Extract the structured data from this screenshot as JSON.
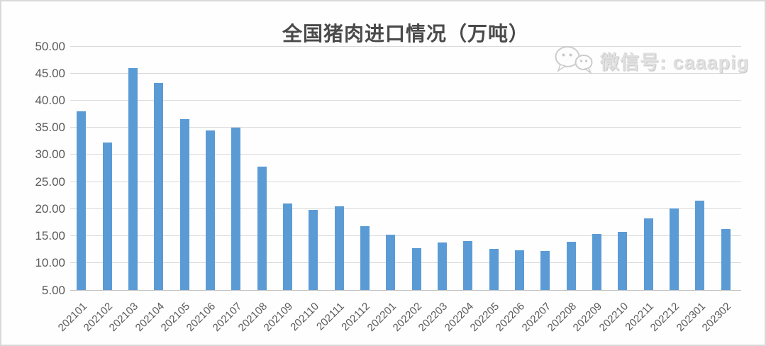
{
  "chart_data": {
    "type": "bar",
    "title": "全国猪肉进口情况（万吨）",
    "categories": [
      "202101",
      "202102",
      "202103",
      "202104",
      "202105",
      "202106",
      "202107",
      "202108",
      "202109",
      "202110",
      "202111",
      "202112",
      "202201",
      "202202",
      "202203",
      "202204",
      "202205",
      "202206",
      "202207",
      "202208",
      "202209",
      "202210",
      "202211",
      "202212",
      "202301",
      "202302"
    ],
    "values": [
      38.0,
      32.2,
      45.9,
      43.2,
      36.5,
      34.4,
      35.0,
      27.8,
      21.0,
      19.8,
      20.4,
      16.8,
      15.2,
      12.7,
      13.8,
      14.0,
      12.6,
      12.3,
      12.2,
      13.9,
      15.3,
      15.7,
      18.2,
      20.1,
      21.5,
      16.2
    ],
    "xlabel": "",
    "ylabel": "",
    "ylim": [
      5,
      50
    ],
    "y_tick_values": [
      50,
      45,
      40,
      35,
      30,
      25,
      20,
      15,
      10,
      5
    ],
    "y_tick_labels": [
      "50.00",
      "45.00",
      "40.00",
      "35.00",
      "30.00",
      "25.00",
      "20.00",
      "15.00",
      "10.00",
      "5.00"
    ],
    "grid": true,
    "legend": false,
    "bar_color": "#5b9bd5"
  },
  "watermark": {
    "label": "微信号: caaapig",
    "icon": "wechat-icon"
  },
  "colors": {
    "gridline": "#d9d9d9",
    "axis_line": "#bfbfbf",
    "tick_text": "#595959",
    "title_text": "#4a4a4a",
    "watermark_text": "#e0e0e0",
    "frame_border": "#d9d9d9",
    "background": "#fefefe"
  }
}
